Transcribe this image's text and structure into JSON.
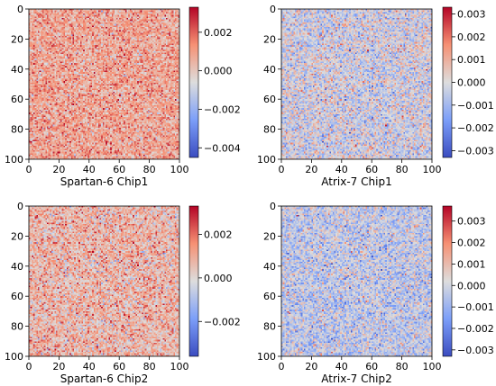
{
  "chart_data": [
    {
      "type": "heatmap",
      "xlabel": "Spartan-6 Chip1",
      "grid": false,
      "matrix_size": [
        100,
        100
      ],
      "diagonal_value": 0.0,
      "x_ticks": [
        "0",
        "20",
        "40",
        "60",
        "80",
        "100"
      ],
      "y_ticks": [
        "0",
        "20",
        "40",
        "60",
        "80",
        "100"
      ],
      "colormap": "coolwarm",
      "cbar_range": [
        -0.0045,
        0.0033
      ],
      "cbar_ticks": [
        0.002,
        0.0,
        -0.002,
        -0.004
      ],
      "cbar_tick_labels": [
        "0.002",
        "0.000",
        "−0.002",
        "−0.004"
      ],
      "value_mean": 0.0008,
      "value_spread": 0.0009
    },
    {
      "type": "heatmap",
      "xlabel": "Atrix-7 Chip1",
      "grid": false,
      "matrix_size": [
        100,
        100
      ],
      "diagonal_value": 0.0,
      "x_ticks": [
        "0",
        "20",
        "40",
        "60",
        "80",
        "100"
      ],
      "y_ticks": [
        "0",
        "20",
        "40",
        "60",
        "80",
        "100"
      ],
      "colormap": "coolwarm",
      "cbar_range": [
        -0.0033,
        0.0033
      ],
      "cbar_ticks": [
        0.003,
        0.002,
        0.001,
        0.0,
        -0.001,
        -0.002,
        -0.003
      ],
      "cbar_tick_labels": [
        "0.003",
        "0.002",
        "0.001",
        "0.000",
        "−0.001",
        "−0.002",
        "−0.003"
      ],
      "value_mean": -0.0002,
      "value_spread": 0.0009
    },
    {
      "type": "heatmap",
      "xlabel": "Spartan-6 Chip2",
      "grid": false,
      "matrix_size": [
        100,
        100
      ],
      "diagonal_value": 0.0,
      "x_ticks": [
        "0",
        "20",
        "40",
        "60",
        "80",
        "100"
      ],
      "y_ticks": [
        "0",
        "20",
        "40",
        "60",
        "80",
        "100"
      ],
      "colormap": "coolwarm",
      "cbar_range": [
        -0.0036,
        0.0033
      ],
      "cbar_ticks": [
        0.002,
        0.0,
        -0.002
      ],
      "cbar_tick_labels": [
        "0.002",
        "0.000",
        "−0.002"
      ],
      "value_mean": 0.0007,
      "value_spread": 0.0009
    },
    {
      "type": "heatmap",
      "xlabel": "Atrix-7 Chip2",
      "grid": false,
      "matrix_size": [
        100,
        100
      ],
      "diagonal_value": 0.0,
      "x_ticks": [
        "0",
        "20",
        "40",
        "60",
        "80",
        "100"
      ],
      "y_ticks": [
        "0",
        "20",
        "40",
        "60",
        "80",
        "100"
      ],
      "colormap": "coolwarm",
      "cbar_range": [
        -0.0033,
        0.0037
      ],
      "cbar_ticks": [
        0.003,
        0.002,
        0.001,
        0.0,
        -0.001,
        -0.002,
        -0.003
      ],
      "cbar_tick_labels": [
        "0.003",
        "0.002",
        "0.001",
        "0.000",
        "−0.001",
        "−0.002",
        "−0.003"
      ],
      "value_mean": -0.0003,
      "value_spread": 0.0009
    }
  ]
}
